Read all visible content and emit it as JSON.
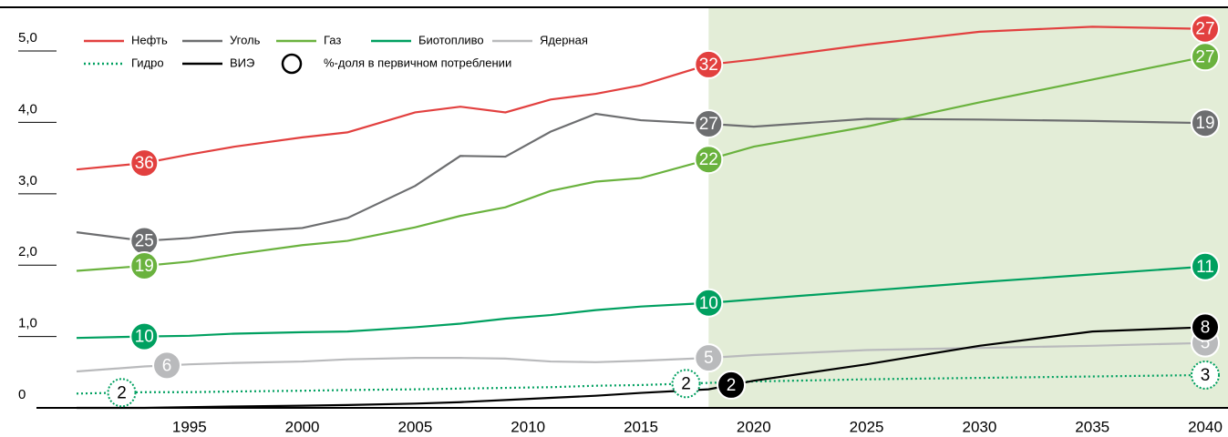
{
  "chart_data": {
    "type": "line",
    "x": [
      1990,
      1993,
      1995,
      1997,
      2000,
      2002,
      2005,
      2007,
      2009,
      2011,
      2013,
      2015,
      2018,
      2020,
      2025,
      2030,
      2035,
      2040
    ],
    "xlim": [
      1990,
      2041
    ],
    "xticks": [
      1995,
      2000,
      2005,
      2010,
      2015,
      2020,
      2025,
      2030,
      2035,
      2040
    ],
    "ylim": [
      0,
      5.6
    ],
    "yticks": [
      0,
      {
        "value": 1,
        "label": "1,0"
      },
      {
        "value": 2,
        "label": "2,0"
      },
      {
        "value": 3,
        "label": "3,0"
      },
      {
        "value": 4,
        "label": "4,0"
      },
      {
        "value": 5,
        "label": "5,0"
      }
    ],
    "forecast_from": 2018,
    "forecast_color": "#e3edd7",
    "share_legend": "%-доля в первичном потреблении",
    "series": [
      {
        "name": "Нефть",
        "color": "#e2403f",
        "dash": "solid",
        "label_fill": "#e2403f",
        "label_text": "#ffffff",
        "values": [
          3.34,
          3.43,
          3.55,
          3.66,
          3.79,
          3.86,
          4.14,
          4.22,
          4.14,
          4.32,
          4.4,
          4.52,
          4.81,
          4.88,
          5.09,
          5.27,
          5.34,
          5.31
        ],
        "shares": [
          {
            "x": 1993,
            "value": 36
          },
          {
            "x": 2018,
            "value": 32
          },
          {
            "x": 2040,
            "value": 27
          }
        ]
      },
      {
        "name": "Уголь",
        "color": "#6d6e70",
        "dash": "solid",
        "label_fill": "#6d6e70",
        "label_text": "#ffffff",
        "values": [
          2.46,
          2.34,
          2.38,
          2.46,
          2.52,
          2.66,
          3.11,
          3.53,
          3.52,
          3.87,
          4.12,
          4.03,
          3.98,
          3.94,
          4.05,
          4.04,
          4.02,
          3.99
        ],
        "shares": [
          {
            "x": 1993,
            "value": 25
          },
          {
            "x": 2018,
            "value": 27
          },
          {
            "x": 2040,
            "value": 19
          }
        ]
      },
      {
        "name": "Газ",
        "color": "#6ab23e",
        "dash": "solid",
        "label_fill": "#6ab23e",
        "label_text": "#ffffff",
        "values": [
          1.92,
          1.99,
          2.05,
          2.15,
          2.28,
          2.34,
          2.53,
          2.69,
          2.81,
          3.04,
          3.17,
          3.22,
          3.48,
          3.66,
          3.94,
          4.28,
          4.6,
          4.92
        ],
        "shares": [
          {
            "x": 1993,
            "value": 19
          },
          {
            "x": 2018,
            "value": 22
          },
          {
            "x": 2040,
            "value": 27
          }
        ]
      },
      {
        "name": "Биотопливо",
        "color": "#00a060",
        "dash": "solid",
        "label_fill": "#00a060",
        "label_text": "#ffffff",
        "values": [
          0.98,
          1.0,
          1.01,
          1.04,
          1.06,
          1.07,
          1.13,
          1.18,
          1.25,
          1.3,
          1.37,
          1.42,
          1.47,
          1.52,
          1.64,
          1.76,
          1.87,
          1.98
        ],
        "shares": [
          {
            "x": 1993,
            "value": 10
          },
          {
            "x": 2018,
            "value": 10
          },
          {
            "x": 2040,
            "value": 11
          }
        ]
      },
      {
        "name": "Ядерная",
        "color": "#b9babc",
        "dash": "solid",
        "label_fill": "#b9babc",
        "label_text": "#ffffff",
        "values": [
          0.51,
          0.58,
          0.61,
          0.63,
          0.65,
          0.68,
          0.7,
          0.7,
          0.69,
          0.65,
          0.64,
          0.66,
          0.7,
          0.74,
          0.81,
          0.84,
          0.87,
          0.91
        ],
        "shares": [
          {
            "x": 1994,
            "value": 6
          },
          {
            "x": 2018,
            "value": 5
          },
          {
            "x": 2040,
            "value": 5
          }
        ]
      },
      {
        "name": "Гидро",
        "color": "#00a060",
        "dash": "dotted",
        "label_fill": "#ffffff",
        "label_text": "#000000",
        "values": [
          0.2,
          0.22,
          0.22,
          0.23,
          0.24,
          0.25,
          0.26,
          0.27,
          0.28,
          0.29,
          0.31,
          0.32,
          0.35,
          0.37,
          0.4,
          0.42,
          0.44,
          0.46
        ],
        "shares": [
          {
            "x": 1992,
            "value": 2
          },
          {
            "x": 2017,
            "value": 2
          },
          {
            "x": 2040,
            "value": 3
          }
        ]
      },
      {
        "name": "ВИЭ",
        "color": "#000000",
        "dash": "solid",
        "label_fill": "#000000",
        "label_text": "#ffffff",
        "values": [
          0.0,
          0.0,
          0.01,
          0.02,
          0.03,
          0.04,
          0.06,
          0.08,
          0.11,
          0.14,
          0.17,
          0.21,
          0.26,
          0.38,
          0.61,
          0.87,
          1.07,
          1.13
        ],
        "shares": [
          {
            "x": 2019,
            "value": 2
          },
          {
            "x": 2040,
            "value": 8
          }
        ]
      }
    ]
  }
}
